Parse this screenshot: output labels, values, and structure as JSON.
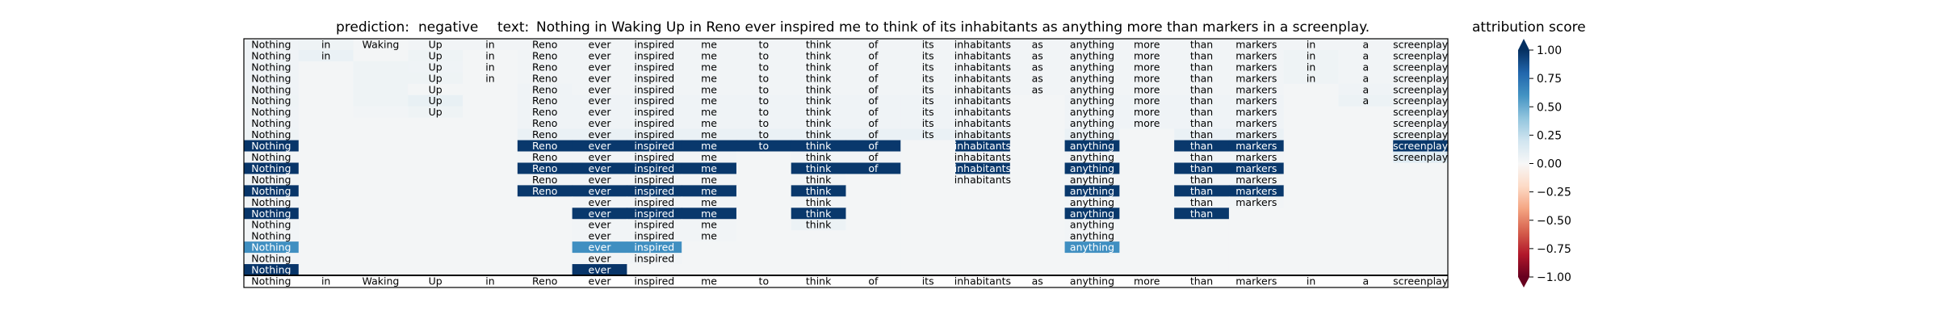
{
  "title": {
    "prediction_label": "prediction:",
    "prediction_value": "negative",
    "text_label": "text:",
    "text_value": "Nothing in Waking Up in Reno ever inspired me to think of its inhabitants as anything more than markers in a screenplay."
  },
  "colorbar": {
    "title": "attribution score",
    "ticks": [
      "1.00",
      "0.75",
      "0.50",
      "0.25",
      "0.00",
      "−0.25",
      "−0.50",
      "−0.75",
      "−1.00"
    ],
    "tick_values": [
      1.0,
      0.75,
      0.5,
      0.25,
      0.0,
      -0.25,
      -0.5,
      -0.75,
      -1.0
    ],
    "colormap": "RdBu",
    "range": [
      -1.0,
      1.0
    ]
  },
  "chart_data": {
    "type": "heatmap",
    "tokens": [
      "Nothing",
      "in",
      "Waking",
      "Up",
      "in",
      "Reno",
      "ever",
      "inspired",
      "me",
      "to",
      "think",
      "of",
      "its",
      "inhabitants",
      "as",
      "anything",
      "more",
      "than",
      "markers",
      "in",
      "a",
      "screenplay"
    ],
    "rows": [
      {
        "shown": [
          0,
          1,
          2,
          3,
          4,
          5,
          6,
          7,
          8,
          9,
          10,
          11,
          12,
          13,
          14,
          15,
          16,
          17,
          18,
          19,
          20,
          21
        ],
        "values": [
          0.04,
          0.05,
          0.02,
          0.03,
          0.03,
          0.03,
          0.03,
          0.03,
          0.03,
          0.03,
          0.03,
          0.03,
          0.03,
          0.03,
          0.03,
          0.03,
          0.03,
          0.03,
          0.03,
          0.03,
          0.03,
          0.03
        ]
      },
      {
        "shown": [
          0,
          1,
          3,
          4,
          5,
          6,
          7,
          8,
          9,
          10,
          11,
          12,
          13,
          14,
          15,
          16,
          17,
          18,
          19,
          20,
          21
        ],
        "values": [
          0.04,
          0.07,
          0.02,
          0.05,
          0.02,
          0.03,
          0.03,
          0.03,
          0.03,
          0.03,
          0.03,
          0.03,
          0.03,
          0.03,
          0.03,
          0.03,
          0.03,
          0.03,
          0.03,
          0.05,
          0.03,
          0.03
        ]
      },
      {
        "shown": [
          0,
          3,
          4,
          5,
          6,
          7,
          8,
          9,
          10,
          11,
          12,
          13,
          14,
          15,
          16,
          17,
          18,
          19,
          20,
          21
        ],
        "values": [
          0.04,
          0.02,
          0.05,
          0.04,
          0.02,
          0.03,
          0.03,
          0.03,
          0.03,
          0.03,
          0.03,
          0.03,
          0.03,
          0.03,
          0.03,
          0.03,
          0.03,
          0.03,
          0.03,
          0.05,
          0.03,
          0.03
        ]
      },
      {
        "shown": [
          0,
          3,
          4,
          5,
          6,
          7,
          8,
          9,
          10,
          11,
          12,
          13,
          14,
          15,
          16,
          17,
          18,
          19,
          20,
          21
        ],
        "values": [
          0.04,
          0.02,
          0.05,
          0.05,
          0.02,
          0.03,
          0.03,
          0.03,
          0.03,
          0.03,
          0.03,
          0.03,
          0.03,
          0.03,
          0.03,
          0.03,
          0.03,
          0.03,
          0.03,
          0.05,
          0.03,
          0.03
        ]
      },
      {
        "shown": [
          0,
          3,
          5,
          6,
          7,
          8,
          9,
          10,
          11,
          12,
          13,
          14,
          15,
          16,
          17,
          18,
          20,
          21
        ],
        "values": [
          0.04,
          0.02,
          0.05,
          0.02,
          0.02,
          0.04,
          0.03,
          0.03,
          0.03,
          0.03,
          0.03,
          0.03,
          0.03,
          0.03,
          0.03,
          0.03,
          0.03,
          0.03,
          0.03,
          0.02,
          0.04,
          0.03
        ]
      },
      {
        "shown": [
          0,
          3,
          5,
          6,
          7,
          8,
          9,
          10,
          11,
          12,
          13,
          15,
          16,
          17,
          18,
          20,
          21
        ],
        "values": [
          0.05,
          0.02,
          0.05,
          0.08,
          0.02,
          0.04,
          0.04,
          0.04,
          0.04,
          0.04,
          0.04,
          0.04,
          0.04,
          0.04,
          0.02,
          0.04,
          0.04,
          0.04,
          0.04,
          0.02,
          0.06,
          0.03
        ]
      },
      {
        "shown": [
          0,
          3,
          5,
          6,
          7,
          8,
          9,
          10,
          11,
          12,
          13,
          15,
          16,
          17,
          18,
          21
        ],
        "values": [
          0.04,
          0.02,
          0.03,
          0.05,
          0.02,
          0.04,
          0.04,
          0.04,
          0.04,
          0.04,
          0.04,
          0.04,
          0.04,
          0.04,
          0.02,
          0.04,
          0.04,
          0.04,
          0.04,
          0.02,
          0.02,
          0.03
        ]
      },
      {
        "shown": [
          0,
          5,
          6,
          7,
          8,
          9,
          10,
          11,
          12,
          13,
          15,
          16,
          17,
          18,
          21
        ],
        "values": [
          0.04,
          0.02,
          0.02,
          0.02,
          0.02,
          0.04,
          0.04,
          0.04,
          0.04,
          0.04,
          0.04,
          0.04,
          0.04,
          0.04,
          0.02,
          0.04,
          0.04,
          0.04,
          0.04,
          0.02,
          0.02,
          0.03
        ]
      },
      {
        "shown": [
          0,
          5,
          6,
          7,
          8,
          9,
          10,
          11,
          12,
          13,
          15,
          17,
          18,
          21
        ],
        "values": [
          0.05,
          0.02,
          0.02,
          0.02,
          0.02,
          0.07,
          0.07,
          0.07,
          0.07,
          0.07,
          0.07,
          0.07,
          0.07,
          0.07,
          0.02,
          0.07,
          0.02,
          0.07,
          0.07,
          0.02,
          0.02,
          0.05
        ]
      },
      {
        "shown": [
          0,
          5,
          6,
          7,
          8,
          9,
          10,
          11,
          13,
          15,
          17,
          18,
          21
        ],
        "values": [
          0.98,
          0.02,
          0.02,
          0.02,
          0.02,
          0.97,
          0.97,
          0.97,
          0.97,
          0.97,
          0.97,
          0.97,
          0.02,
          0.97,
          0.02,
          0.97,
          0.02,
          0.97,
          0.97,
          0.02,
          0.02,
          0.97
        ]
      },
      {
        "shown": [
          0,
          5,
          6,
          7,
          8,
          10,
          11,
          13,
          15,
          17,
          18,
          21
        ],
        "values": [
          0.03,
          0.02,
          0.02,
          0.02,
          0.02,
          0.03,
          0.03,
          0.03,
          0.03,
          0.02,
          0.03,
          0.03,
          0.02,
          0.03,
          0.02,
          0.03,
          0.02,
          0.03,
          0.03,
          0.02,
          0.02,
          0.12
        ]
      },
      {
        "shown": [
          0,
          5,
          6,
          7,
          8,
          10,
          11,
          13,
          15,
          17,
          18
        ],
        "values": [
          0.98,
          0.02,
          0.02,
          0.02,
          0.02,
          0.97,
          0.97,
          0.97,
          0.97,
          0.02,
          0.97,
          0.97,
          0.02,
          0.97,
          0.02,
          0.97,
          0.02,
          0.97,
          0.97,
          0.02,
          0.02,
          0.02
        ]
      },
      {
        "shown": [
          0,
          5,
          6,
          7,
          8,
          10,
          13,
          15,
          17,
          18
        ],
        "values": [
          0.03,
          0.02,
          0.02,
          0.02,
          0.02,
          0.03,
          0.03,
          0.03,
          0.03,
          0.02,
          0.03,
          0.02,
          0.02,
          0.03,
          0.02,
          0.03,
          0.02,
          0.03,
          0.03,
          0.02,
          0.02,
          0.02
        ]
      },
      {
        "shown": [
          0,
          5,
          6,
          7,
          8,
          10,
          15,
          17,
          18
        ],
        "values": [
          0.98,
          0.02,
          0.02,
          0.02,
          0.02,
          0.97,
          0.97,
          0.97,
          0.97,
          0.02,
          0.97,
          0.02,
          0.02,
          0.02,
          0.02,
          0.97,
          0.02,
          0.97,
          0.97,
          0.02,
          0.02,
          0.02
        ]
      },
      {
        "shown": [
          0,
          6,
          7,
          8,
          10,
          15,
          17,
          18
        ],
        "values": [
          0.03,
          0.02,
          0.02,
          0.02,
          0.02,
          0.02,
          0.03,
          0.03,
          0.03,
          0.02,
          0.03,
          0.02,
          0.02,
          0.02,
          0.02,
          0.03,
          0.02,
          0.03,
          0.03,
          0.02,
          0.02,
          0.02
        ]
      },
      {
        "shown": [
          0,
          6,
          7,
          8,
          10,
          15,
          17
        ],
        "values": [
          0.98,
          0.02,
          0.02,
          0.02,
          0.02,
          0.02,
          0.97,
          0.97,
          0.97,
          0.02,
          0.97,
          0.02,
          0.02,
          0.02,
          0.02,
          0.97,
          0.02,
          0.97,
          0.02,
          0.02,
          0.02,
          0.02
        ]
      },
      {
        "shown": [
          0,
          6,
          7,
          8,
          10,
          15
        ],
        "values": [
          0.03,
          0.02,
          0.02,
          0.02,
          0.02,
          0.02,
          0.03,
          0.03,
          0.03,
          0.02,
          0.06,
          0.02,
          0.02,
          0.02,
          0.02,
          0.03,
          0.02,
          0.02,
          0.02,
          0.02,
          0.02,
          0.02
        ]
      },
      {
        "shown": [
          0,
          6,
          7,
          8,
          15
        ],
        "values": [
          0.03,
          0.02,
          0.02,
          0.02,
          0.02,
          0.02,
          0.03,
          0.03,
          0.03,
          0.02,
          0.02,
          0.02,
          0.02,
          0.02,
          0.02,
          0.03,
          0.02,
          0.02,
          0.02,
          0.02,
          0.02,
          0.02
        ]
      },
      {
        "shown": [
          0,
          6,
          7,
          15
        ],
        "values": [
          0.62,
          0.02,
          0.02,
          0.02,
          0.02,
          0.02,
          0.62,
          0.62,
          0.02,
          0.02,
          0.02,
          0.02,
          0.02,
          0.02,
          0.02,
          0.62,
          0.02,
          0.02,
          0.02,
          0.02,
          0.02,
          0.02
        ]
      },
      {
        "shown": [
          0,
          6,
          7
        ],
        "values": [
          0.03,
          0.02,
          0.02,
          0.02,
          0.02,
          0.02,
          0.03,
          0.03,
          0.02,
          0.02,
          0.02,
          0.02,
          0.02,
          0.02,
          0.02,
          0.02,
          0.02,
          0.02,
          0.02,
          0.02,
          0.02,
          0.02
        ]
      },
      {
        "shown": [
          0,
          6
        ],
        "values": [
          0.98,
          0.02,
          0.02,
          0.02,
          0.02,
          0.02,
          0.98,
          0.02,
          0.02,
          0.02,
          0.02,
          0.02,
          0.02,
          0.02,
          0.02,
          0.02,
          0.02,
          0.02,
          0.02,
          0.02,
          0.02,
          0.02
        ]
      }
    ]
  }
}
